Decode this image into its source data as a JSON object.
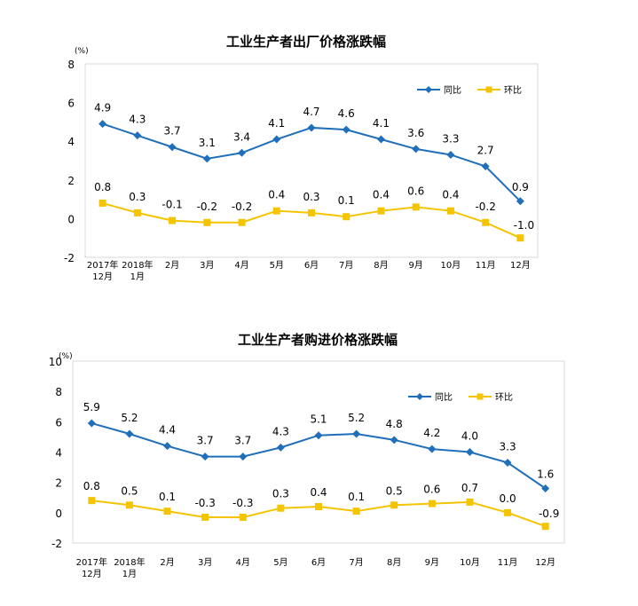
{
  "chart_data": [
    {
      "type": "line",
      "title": "工业生产者出厂价格涨跌幅",
      "unit": "(%)",
      "categories": [
        [
          "2017年",
          "12月"
        ],
        [
          "2018年",
          "1月"
        ],
        [
          "2月"
        ],
        [
          "3月"
        ],
        [
          "4月"
        ],
        [
          "5月"
        ],
        [
          "6月"
        ],
        [
          "7月"
        ],
        [
          "8月"
        ],
        [
          "9月"
        ],
        [
          "10月"
        ],
        [
          "11月"
        ],
        [
          "12月"
        ]
      ],
      "ylim": [
        -2,
        8
      ],
      "yticks": [
        "-2",
        "0",
        "2",
        "4",
        "6",
        "8"
      ],
      "grid": false,
      "legend_position": "top-right",
      "series": [
        {
          "name": "同比",
          "color": "#1f6fba",
          "marker": "diamond",
          "values": [
            4.9,
            4.3,
            3.7,
            3.1,
            3.4,
            4.1,
            4.7,
            4.6,
            4.1,
            3.6,
            3.3,
            2.7,
            0.9
          ],
          "labels": [
            "4.9",
            "4.3",
            "3.7",
            "3.1",
            "3.4",
            "4.1",
            "4.7",
            "4.6",
            "4.1",
            "3.6",
            "3.3",
            "2.7",
            "0.9"
          ]
        },
        {
          "name": "环比",
          "color": "#f5c400",
          "marker": "square",
          "values": [
            0.8,
            0.3,
            -0.1,
            -0.2,
            -0.2,
            0.4,
            0.3,
            0.1,
            0.4,
            0.6,
            0.4,
            -0.2,
            -1.0
          ],
          "labels": [
            "0.8",
            "0.3",
            "-0.1",
            "-0.2",
            "-0.2",
            "0.4",
            "0.3",
            "0.1",
            "0.4",
            "0.6",
            "0.4",
            "-0.2",
            "-1.0"
          ]
        }
      ]
    },
    {
      "type": "line",
      "title": "工业生产者购进价格涨跌幅",
      "unit": "(%)",
      "categories": [
        [
          "2017年",
          "12月"
        ],
        [
          "2018年",
          "1月"
        ],
        [
          "2月"
        ],
        [
          "3月"
        ],
        [
          "4月"
        ],
        [
          "5月"
        ],
        [
          "6月"
        ],
        [
          "7月"
        ],
        [
          "8月"
        ],
        [
          "9月"
        ],
        [
          "10月"
        ],
        [
          "11月"
        ],
        [
          "12月"
        ]
      ],
      "ylim": [
        -2,
        10
      ],
      "yticks": [
        "-2",
        "0",
        "2",
        "4",
        "6",
        "8",
        "10"
      ],
      "grid": false,
      "legend_position": "top-right",
      "series": [
        {
          "name": "同比",
          "color": "#1f6fba",
          "marker": "diamond",
          "values": [
            5.9,
            5.2,
            4.4,
            3.7,
            3.7,
            4.3,
            5.1,
            5.2,
            4.8,
            4.2,
            4.0,
            3.3,
            1.6
          ],
          "labels": [
            "5.9",
            "5.2",
            "4.4",
            "3.7",
            "3.7",
            "4.3",
            "5.1",
            "5.2",
            "4.8",
            "4.2",
            "4.0",
            "3.3",
            "1.6"
          ]
        },
        {
          "name": "环比",
          "color": "#f5c400",
          "marker": "square",
          "values": [
            0.8,
            0.5,
            0.1,
            -0.3,
            -0.3,
            0.3,
            0.4,
            0.1,
            0.5,
            0.6,
            0.7,
            0.0,
            -0.9
          ],
          "labels": [
            "0.8",
            "0.5",
            "0.1",
            "-0.3",
            "-0.3",
            "0.3",
            "0.4",
            "0.1",
            "0.5",
            "0.6",
            "0.7",
            "0.0",
            "-0.9"
          ]
        }
      ]
    }
  ]
}
